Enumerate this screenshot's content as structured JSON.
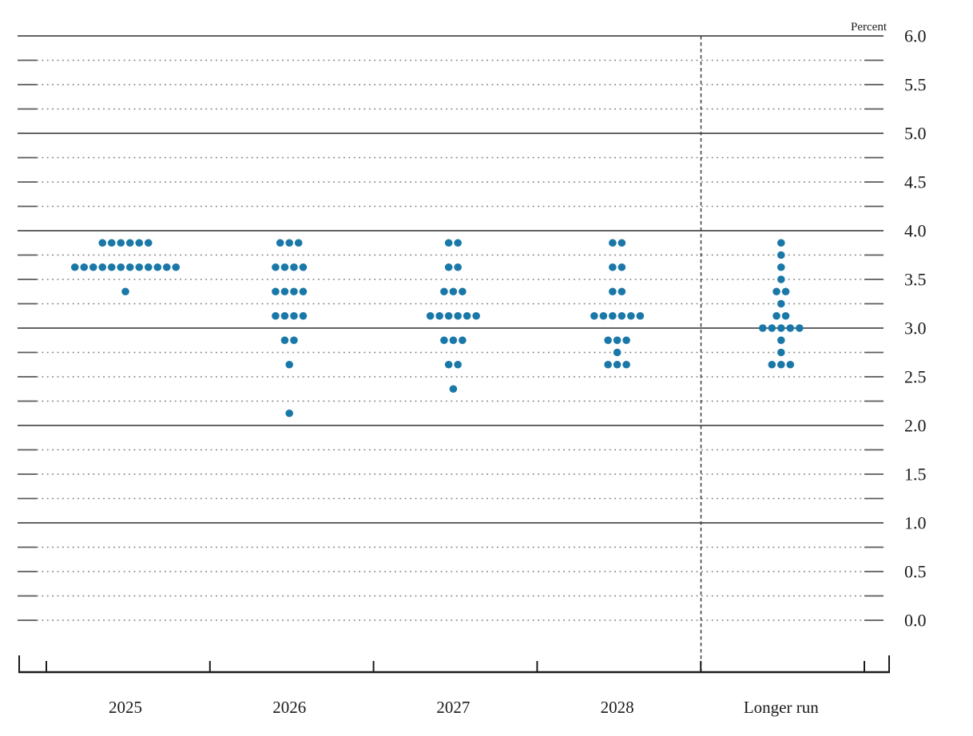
{
  "chart_data": {
    "type": "scatter",
    "subtype": "fomc-dot-plot",
    "unit_label": "Percent",
    "ylim": [
      0.0,
      6.0
    ],
    "gridline_step": 0.25,
    "major_line_values": [
      6.0,
      5.0,
      4.0,
      3.0,
      2.0,
      1.0
    ],
    "y_tick_labels": [
      "6.0",
      "5.5",
      "5.0",
      "4.5",
      "4.0",
      "3.5",
      "3.0",
      "2.5",
      "2.0",
      "1.5",
      "1.0",
      "0.5",
      "0.0"
    ],
    "categories": [
      "2025",
      "2026",
      "2027",
      "2028",
      "Longer run"
    ],
    "separator_before_category": "Longer run",
    "legend_position": "none",
    "grid": "on",
    "columns": [
      {
        "category": "2025",
        "dots": [
          {
            "value": 3.875,
            "count": 6
          },
          {
            "value": 3.625,
            "count": 12
          },
          {
            "value": 3.375,
            "count": 1
          }
        ]
      },
      {
        "category": "2026",
        "dots": [
          {
            "value": 3.875,
            "count": 3
          },
          {
            "value": 3.625,
            "count": 4
          },
          {
            "value": 3.375,
            "count": 4
          },
          {
            "value": 3.125,
            "count": 4
          },
          {
            "value": 2.875,
            "count": 2
          },
          {
            "value": 2.625,
            "count": 1
          },
          {
            "value": 2.125,
            "count": 1
          }
        ]
      },
      {
        "category": "2027",
        "dots": [
          {
            "value": 3.875,
            "count": 2
          },
          {
            "value": 3.625,
            "count": 2
          },
          {
            "value": 3.375,
            "count": 3
          },
          {
            "value": 3.125,
            "count": 6
          },
          {
            "value": 2.875,
            "count": 3
          },
          {
            "value": 2.625,
            "count": 2
          },
          {
            "value": 2.375,
            "count": 1
          }
        ]
      },
      {
        "category": "2028",
        "dots": [
          {
            "value": 3.875,
            "count": 2
          },
          {
            "value": 3.625,
            "count": 2
          },
          {
            "value": 3.375,
            "count": 2
          },
          {
            "value": 3.125,
            "count": 6
          },
          {
            "value": 2.875,
            "count": 3
          },
          {
            "value": 2.75,
            "count": 1
          },
          {
            "value": 2.625,
            "count": 3
          }
        ]
      },
      {
        "category": "Longer run",
        "dots": [
          {
            "value": 3.875,
            "count": 1
          },
          {
            "value": 3.75,
            "count": 1
          },
          {
            "value": 3.625,
            "count": 1
          },
          {
            "value": 3.5,
            "count": 1
          },
          {
            "value": 3.375,
            "count": 2
          },
          {
            "value": 3.25,
            "count": 1
          },
          {
            "value": 3.125,
            "count": 2
          },
          {
            "value": 3.0,
            "count": 5
          },
          {
            "value": 2.875,
            "count": 1
          },
          {
            "value": 2.75,
            "count": 1
          },
          {
            "value": 2.625,
            "count": 3
          }
        ]
      }
    ],
    "colors": {
      "dot": "#1a78a8",
      "solid_gridline": "#4d4d4d",
      "dotted_gridline": "#7d7d7d",
      "edge_dash": "#5a5a5a",
      "axis": "#1a1a1a",
      "separator": "#3a3a3a",
      "label_text": "#1a1a1a"
    }
  }
}
